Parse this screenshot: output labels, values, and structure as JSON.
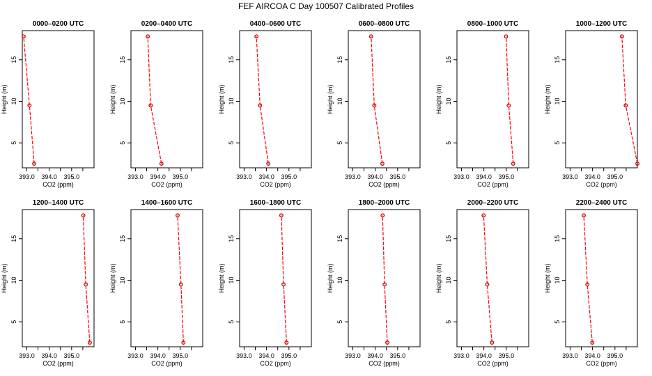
{
  "figure": {
    "title": "FEF AIRCOA C  Day 100507  Calibrated Profiles",
    "colors": {
      "line": "#ff0000",
      "marker": "#cc0000",
      "axis": "#000000"
    }
  },
  "chart_data": [
    {
      "type": "line",
      "title": "0000–0200 UTC",
      "xlabel": "CO2 (ppm)",
      "ylabel": "Height (m)",
      "xlim": [
        392.8,
        396.0
      ],
      "ylim": [
        2,
        18.5
      ],
      "xticks": [
        393.0,
        393.5,
        394.0,
        394.5,
        395.0,
        395.5
      ],
      "xtick_labels": [
        "393.0",
        "",
        "394.0",
        "",
        "395.0",
        ""
      ],
      "yticks": [
        5,
        10,
        15
      ],
      "ytick_labels": [
        "5",
        "10",
        "15"
      ],
      "grid": false,
      "series": [
        {
          "x": [
            393.33,
            393.12,
            392.86
          ],
          "y": [
            2.5,
            9.5,
            17.8
          ]
        }
      ]
    },
    {
      "type": "line",
      "title": "0200–0400 UTC",
      "xlabel": "CO2 (ppm)",
      "ylabel": "Height (m)",
      "xlim": [
        392.8,
        396.0
      ],
      "ylim": [
        2,
        18.5
      ],
      "xticks": [
        393.0,
        393.5,
        394.0,
        394.5,
        395.0,
        395.5
      ],
      "xtick_labels": [
        "393.0",
        "",
        "394.0",
        "",
        "395.0",
        ""
      ],
      "yticks": [
        5,
        10,
        15
      ],
      "ytick_labels": [
        "5",
        "10",
        "15"
      ],
      "grid": false,
      "series": [
        {
          "x": [
            394.16,
            393.68,
            393.55
          ],
          "y": [
            2.5,
            9.5,
            17.8
          ]
        }
      ]
    },
    {
      "type": "line",
      "title": "0400–0600 UTC",
      "xlabel": "CO2 (ppm)",
      "ylabel": "Height (m)",
      "xlim": [
        392.8,
        396.0
      ],
      "ylim": [
        2,
        18.5
      ],
      "xticks": [
        393.0,
        393.5,
        394.0,
        394.5,
        395.0,
        395.5
      ],
      "xtick_labels": [
        "393.0",
        "",
        "394.0",
        "",
        "395.0",
        ""
      ],
      "yticks": [
        5,
        10,
        15
      ],
      "ytick_labels": [
        "5",
        "10",
        "15"
      ],
      "grid": false,
      "series": [
        {
          "x": [
            394.08,
            393.71,
            393.55
          ],
          "y": [
            2.5,
            9.5,
            17.8
          ]
        }
      ]
    },
    {
      "type": "line",
      "title": "0600–0800 UTC",
      "xlabel": "CO2 (ppm)",
      "ylabel": "Height (m)",
      "xlim": [
        392.8,
        396.0
      ],
      "ylim": [
        2,
        18.5
      ],
      "xticks": [
        393.0,
        393.5,
        394.0,
        394.5,
        395.0,
        395.5
      ],
      "xtick_labels": [
        "393.0",
        "",
        "394.0",
        "",
        "395.0",
        ""
      ],
      "yticks": [
        5,
        10,
        15
      ],
      "ytick_labels": [
        "5",
        "10",
        "15"
      ],
      "grid": false,
      "series": [
        {
          "x": [
            394.32,
            393.96,
            393.82
          ],
          "y": [
            2.5,
            9.5,
            17.8
          ]
        }
      ]
    },
    {
      "type": "line",
      "title": "0800–1000 UTC",
      "xlabel": "CO2 (ppm)",
      "ylabel": "Height (m)",
      "xlim": [
        392.8,
        396.0
      ],
      "ylim": [
        2,
        18.5
      ],
      "xticks": [
        393.0,
        393.5,
        394.0,
        394.5,
        395.0,
        395.5
      ],
      "xtick_labels": [
        "393.0",
        "",
        "394.0",
        "",
        "395.0",
        ""
      ],
      "yticks": [
        5,
        10,
        15
      ],
      "ytick_labels": [
        "5",
        "10",
        "15"
      ],
      "grid": false,
      "series": [
        {
          "x": [
            395.31,
            395.11,
            394.99
          ],
          "y": [
            2.5,
            9.5,
            17.8
          ]
        }
      ]
    },
    {
      "type": "line",
      "title": "1000–1200 UTC",
      "xlabel": "CO2 (ppm)",
      "ylabel": "Height (m)",
      "xlim": [
        392.8,
        396.0
      ],
      "ylim": [
        2,
        18.5
      ],
      "xticks": [
        393.0,
        393.5,
        394.0,
        394.5,
        395.0,
        395.5
      ],
      "xtick_labels": [
        "393.0",
        "",
        "394.0",
        "",
        "395.0",
        ""
      ],
      "yticks": [
        5,
        10,
        15
      ],
      "ytick_labels": [
        "5",
        "10",
        "15"
      ],
      "grid": false,
      "series": [
        {
          "x": [
            396.0,
            395.48,
            395.31
          ],
          "y": [
            2.5,
            9.5,
            17.8
          ]
        }
      ]
    },
    {
      "type": "line",
      "title": "1200–1400 UTC",
      "xlabel": "CO2 (ppm)",
      "ylabel": "Height (m)",
      "xlim": [
        392.8,
        396.0
      ],
      "ylim": [
        2,
        18.5
      ],
      "xticks": [
        393.0,
        393.5,
        394.0,
        394.5,
        395.0,
        395.5
      ],
      "xtick_labels": [
        "393.0",
        "",
        "394.0",
        "",
        "395.0",
        ""
      ],
      "yticks": [
        5,
        10,
        15
      ],
      "ytick_labels": [
        "5",
        "10",
        "15"
      ],
      "grid": false,
      "series": [
        {
          "x": [
            395.81,
            395.63,
            395.52
          ],
          "y": [
            2.5,
            9.5,
            17.8
          ]
        }
      ]
    },
    {
      "type": "line",
      "title": "1400–1600 UTC",
      "xlabel": "CO2 (ppm)",
      "ylabel": "Height (m)",
      "xlim": [
        392.8,
        396.0
      ],
      "ylim": [
        2,
        18.5
      ],
      "xticks": [
        393.0,
        393.5,
        394.0,
        394.5,
        395.0,
        395.5
      ],
      "xtick_labels": [
        "393.0",
        "",
        "394.0",
        "",
        "395.0",
        ""
      ],
      "yticks": [
        5,
        10,
        15
      ],
      "ytick_labels": [
        "5",
        "10",
        "15"
      ],
      "grid": false,
      "series": [
        {
          "x": [
            395.14,
            395.03,
            394.88
          ],
          "y": [
            2.5,
            9.5,
            17.8
          ]
        }
      ]
    },
    {
      "type": "line",
      "title": "1600–1800 UTC",
      "xlabel": "CO2 (ppm)",
      "ylabel": "Height (m)",
      "xlim": [
        392.8,
        396.0
      ],
      "ylim": [
        2,
        18.5
      ],
      "xticks": [
        393.0,
        393.5,
        394.0,
        394.5,
        395.0,
        395.5
      ],
      "xtick_labels": [
        "393.0",
        "",
        "394.0",
        "",
        "395.0",
        ""
      ],
      "yticks": [
        5,
        10,
        15
      ],
      "ytick_labels": [
        "5",
        "10",
        "15"
      ],
      "grid": false,
      "series": [
        {
          "x": [
            394.89,
            394.76,
            394.66
          ],
          "y": [
            2.5,
            9.5,
            17.8
          ]
        }
      ]
    },
    {
      "type": "line",
      "title": "1800–2000 UTC",
      "xlabel": "CO2 (ppm)",
      "ylabel": "Height (m)",
      "xlim": [
        392.8,
        396.0
      ],
      "ylim": [
        2,
        18.5
      ],
      "xticks": [
        393.0,
        393.5,
        394.0,
        394.5,
        395.0,
        395.5
      ],
      "xtick_labels": [
        "393.0",
        "",
        "394.0",
        "",
        "395.0",
        ""
      ],
      "yticks": [
        5,
        10,
        15
      ],
      "ytick_labels": [
        "5",
        "10",
        "15"
      ],
      "grid": false,
      "series": [
        {
          "x": [
            394.54,
            394.42,
            394.33
          ],
          "y": [
            2.5,
            9.5,
            17.8
          ]
        }
      ]
    },
    {
      "type": "line",
      "title": "2000–2200 UTC",
      "xlabel": "CO2 (ppm)",
      "ylabel": "Height (m)",
      "xlim": [
        392.8,
        396.0
      ],
      "ylim": [
        2,
        18.5
      ],
      "xticks": [
        393.0,
        393.5,
        394.0,
        394.5,
        395.0,
        395.5
      ],
      "xtick_labels": [
        "393.0",
        "",
        "394.0",
        "",
        "395.0",
        ""
      ],
      "yticks": [
        5,
        10,
        15
      ],
      "ytick_labels": [
        "5",
        "10",
        "15"
      ],
      "grid": false,
      "series": [
        {
          "x": [
            394.36,
            394.15,
            393.99
          ],
          "y": [
            2.5,
            9.5,
            17.8
          ]
        }
      ]
    },
    {
      "type": "line",
      "title": "2200–2400 UTC",
      "xlabel": "CO2 (ppm)",
      "ylabel": "Height (m)",
      "xlim": [
        392.8,
        396.0
      ],
      "ylim": [
        2,
        18.5
      ],
      "xticks": [
        393.0,
        393.5,
        394.0,
        394.5,
        395.0,
        395.5
      ],
      "xtick_labels": [
        "393.0",
        "",
        "394.0",
        "",
        "395.0",
        ""
      ],
      "yticks": [
        5,
        10,
        15
      ],
      "ytick_labels": [
        "5",
        "10",
        "15"
      ],
      "grid": false,
      "series": [
        {
          "x": [
            393.99,
            393.77,
            393.61
          ],
          "y": [
            2.5,
            9.5,
            17.8
          ]
        }
      ]
    }
  ]
}
